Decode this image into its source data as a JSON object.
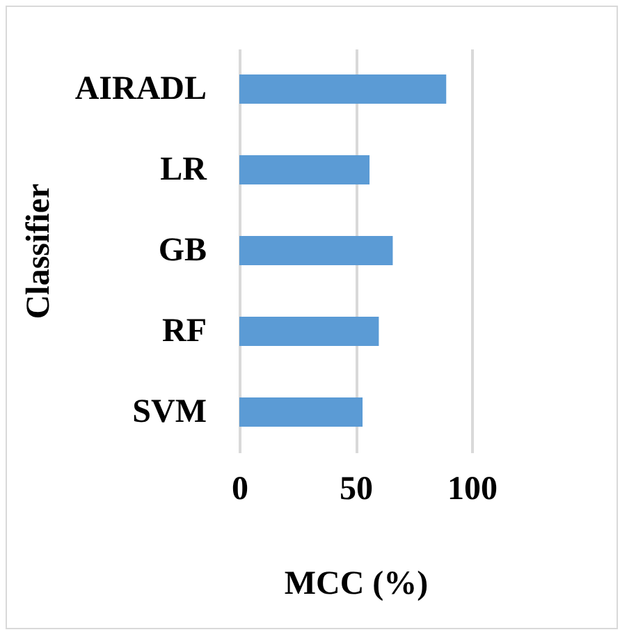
{
  "chart_data": {
    "type": "bar",
    "orientation": "horizontal",
    "categories": [
      "AIRADL",
      "LR",
      "GB",
      "RF",
      "SVM"
    ],
    "values": [
      89,
      56,
      66,
      60,
      53
    ],
    "color": "#5b9bd5",
    "xlim": [
      0,
      100
    ],
    "xticks": [
      0,
      50,
      100
    ],
    "xlabel": "MCC (%)",
    "ylabel": "Classifier",
    "grid": "x"
  }
}
